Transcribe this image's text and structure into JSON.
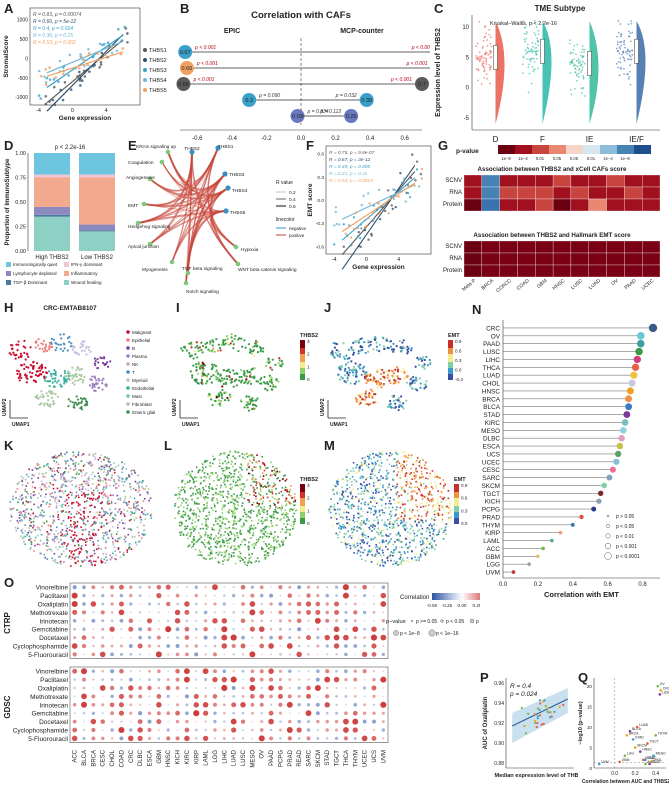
{
  "colors": {
    "thbs1": "#5a5a5a",
    "thbs2": "#2f4f6f",
    "thbs3": "#3aa0c9",
    "thbs4": "#6fb7d6",
    "thbs5": "#f0a060",
    "red": "#b30015",
    "blue": "#2c5c96"
  },
  "A": {
    "label": "A",
    "xlabel": "Gene expression",
    "ylabel": "StromalScore",
    "stats": [
      "R = 0.83, p = 0.00074",
      "R = 0.66, p = 5e-12",
      "R = 0.4, p = 0.024",
      "R = 0.36, p = 0.15",
      "R = 0.53, p = 0.002"
    ],
    "legend": [
      "THBS1",
      "THBS2",
      "THBS3",
      "THBS4",
      "THBS5"
    ],
    "xticks": [
      "-4",
      "0",
      "4"
    ],
    "yticks": [
      "1000",
      "500",
      "0",
      "-500",
      "-1000"
    ],
    "chart_data": {
      "type": "scatter",
      "title": "",
      "xlabel": "Gene expression",
      "ylabel": "StromalScore",
      "xlim": [
        -5,
        8
      ],
      "ylim": [
        -1200,
        1300
      ],
      "series": [
        {
          "name": "THBS1",
          "slope": 180,
          "intercept": -600
        },
        {
          "name": "THBS2",
          "slope": 220,
          "intercept": -700
        },
        {
          "name": "THBS3",
          "slope": 150,
          "intercept": -300
        },
        {
          "name": "THBS4",
          "slope": 90,
          "intercept": -100
        },
        {
          "name": "THBS5",
          "slope": 70,
          "intercept": -250
        }
      ]
    }
  },
  "B": {
    "label": "B",
    "title": "Correlation with CAFs",
    "left_title": "EPIC",
    "right_title": "MCP-counter",
    "xticks_left": [
      "-0.6",
      "-0.4",
      "-0.2",
      "0.0"
    ],
    "xticks_right": [
      "0.2",
      "0.4",
      "0.6"
    ],
    "chart_data": {
      "type": "dot",
      "xlim": [
        -0.7,
        0.7
      ],
      "epic": [
        {
          "gene": "THBS1",
          "value": -0.67,
          "p": "p < 0.001",
          "label": "0.67"
        },
        {
          "gene": "THBS2",
          "value": -0.66,
          "p": "p < 0.001",
          "label": "0.66"
        },
        {
          "gene": "THBS3",
          "value": -0.68,
          "p": "p < 0.001",
          "label": "0.68"
        },
        {
          "gene": "THBS4",
          "value": -0.3,
          "p": "p = 0.090",
          "label": "0.3"
        },
        {
          "gene": "THBS5",
          "value": -0.02,
          "p": "p = 0.834",
          "label": "0.02"
        }
      ],
      "mcp": [
        {
          "gene": "THBS1",
          "value": 0.82,
          "p": "p < 0.001",
          "label": "0.82"
        },
        {
          "gene": "THBS2",
          "value": 0.79,
          "p": "p < 0.001",
          "label": "0.79"
        },
        {
          "gene": "THBS3",
          "value": 0.7,
          "p": "p < 0.001",
          "label": "0.7"
        },
        {
          "gene": "THBS4",
          "value": 0.38,
          "p": "p = 0.032",
          "label": "0.38"
        },
        {
          "gene": "THBS5",
          "value": 0.29,
          "p": "p = 0.112",
          "label": "0.29"
        }
      ]
    }
  },
  "C": {
    "label": "C",
    "title": "TME Subtype",
    "stat": "Kruskal–Wallis, p < 2.2e-16",
    "ylabel": "Expression level of THBS2",
    "yticks": [
      "10",
      "5",
      "0",
      "-5"
    ],
    "chart_data": {
      "type": "violin",
      "categories": [
        "D",
        "F",
        "IE",
        "IE/F"
      ],
      "colors": [
        "#e8594a",
        "#27b8a8",
        "#33b89a",
        "#3a6aa8"
      ],
      "medians": [
        5,
        6,
        4,
        6
      ]
    }
  },
  "D": {
    "label": "D",
    "stat": "p < 2.2e-16",
    "ylabel": "Proportion of ImmunoSubtype",
    "yticks": [
      "1.00",
      "0.75",
      "0.50",
      "0.25",
      "0.00"
    ],
    "legend": [
      "Immunologically quiet",
      "IFN-γ dominant",
      "Lymphocyte depleted",
      "Inflammatory",
      "TGF-β Dominant",
      "Wound healing"
    ],
    "chart_data": {
      "type": "stacked_bar",
      "categories": [
        "High THBS2",
        "Low THBS2"
      ],
      "series": [
        {
          "name": "Wound healing",
          "color": "#8fd0c4",
          "values": [
            0.35,
            0.2
          ]
        },
        {
          "name": "TGF-β Dominant",
          "color": "#4a7aa0",
          "values": [
            0.02,
            0.01
          ]
        },
        {
          "name": "Lymphocyte depleted",
          "color": "#8c88c0",
          "values": [
            0.08,
            0.06
          ]
        },
        {
          "name": "Inflammatory",
          "color": "#f3a98e",
          "values": [
            0.3,
            0.48
          ]
        },
        {
          "name": "IFN-γ dominant",
          "color": "#f0c8d4",
          "values": [
            0.03,
            0.03
          ]
        },
        {
          "name": "Immunologically quiet",
          "color": "#6ec5e0",
          "values": [
            0.22,
            0.22
          ]
        }
      ]
    }
  },
  "E": {
    "label": "E",
    "nodes": [
      "THBS1",
      "THBS2",
      "THBS3",
      "THBS4",
      "THBS5",
      "KRAS signaling up",
      "Coagulation",
      "Angiogenesis",
      "EMT",
      "Hedgehog signaling",
      "Apical junction",
      "Myogenesis",
      "TGF beta signaling",
      "Notch signaling",
      "WNT beta catenin signaling",
      "Hypoxia"
    ],
    "legend_title": "R value",
    "legend_r": [
      "0.2",
      "0.4",
      "0.6"
    ],
    "legend_line_title": "linecolor",
    "legend_lines": [
      "negative",
      "positive"
    ]
  },
  "F": {
    "label": "F",
    "xlabel": "Gene expression",
    "ylabel": "EMT score",
    "stats": [
      "R = 0.75, p = 9.8e-07",
      "R = 0.67, p = 3e-12",
      "R = 0.49, p = 0.005",
      "R = 0.21, p = 0.41",
      "R = 0.53, p = 0.0014"
    ],
    "xticks": [
      "-4",
      "0",
      "4"
    ],
    "yticks": [
      "0.6",
      "0.3",
      "0.0",
      "-0.3",
      "-0.6"
    ]
  },
  "G": {
    "label": "G",
    "pvalue_title": "p-value",
    "pvalue_ticks": [
      "1e−8",
      "1e−4",
      "0.01",
      "0.05",
      "0.05",
      "0.01",
      "1e−4",
      "1e−8"
    ],
    "title1": "Association between THBS2 and xCell CAFs score",
    "title2": "Association between THBS2 and Hallmark EMT score",
    "rows1": [
      "SCNV",
      "RNA",
      "Protein"
    ],
    "rows2": [
      "SCNV",
      "RNA",
      "Protein"
    ],
    "cols": [
      "Meta P",
      "BRCA",
      "CCRCC",
      "COAD",
      "GBM",
      "HNSC",
      "LUSC",
      "LUAD",
      "OV",
      "PAAD",
      "UCEC"
    ]
  },
  "H": {
    "label": "H",
    "title": "CRC-EMTAB8107",
    "xlabel": "UMAP1",
    "ylabel": "UMAP2",
    "legend": [
      "Malignant",
      "Epithelial",
      "B",
      "Plasma",
      "NK",
      "T",
      "Myeloid",
      "Endothelial",
      "Mast",
      "Fibroblast",
      "Enteric glial"
    ],
    "legend_colors": [
      "#c8102e",
      "#f08080",
      "#7b3fa0",
      "#9b7fc0",
      "#d0a0d0",
      "#4e8fc0",
      "#c0c0e0",
      "#3ab0a0",
      "#7ac0b0",
      "#a8c8a0",
      "#3f8f4f"
    ]
  },
  "I": {
    "label": "I",
    "colorbar_title": "THBS2",
    "colorbar_ticks": [
      "3",
      "2",
      "1",
      "0"
    ]
  },
  "J": {
    "label": "J",
    "colorbar_title": "EMT",
    "colorbar_ticks": [
      "0.9",
      "0.6",
      "0.3",
      "0.0",
      "-0.3"
    ]
  },
  "K": {
    "label": "K"
  },
  "L": {
    "label": "L",
    "colorbar_title": "THBS2",
    "colorbar_ticks": [
      "3",
      "2",
      "1",
      "0"
    ]
  },
  "M": {
    "label": "M",
    "colorbar_title": "EMT",
    "colorbar_ticks": [
      "0.9",
      "0.6",
      "0.3",
      "0.0"
    ]
  },
  "N": {
    "label": "N",
    "xlabel": "Correlation with EMT",
    "xticks": [
      "0.0",
      "0.2",
      "0.4",
      "0.6",
      "0.8"
    ],
    "legend": [
      "p > 0.05",
      "p < 0.05",
      "p < 0.01",
      "p < 0.001",
      "p < 0.0001"
    ],
    "chart_data": {
      "type": "lollipop",
      "xlim": [
        0,
        0.9
      ],
      "categories": [
        "CRC",
        "OV",
        "PAAD",
        "LUSC",
        "LIHC",
        "THCA",
        "LUAD",
        "CHOL",
        "HNSC",
        "BRCA",
        "BLCA",
        "STAD",
        "KIRC",
        "MESO",
        "DLBC",
        "ESCA",
        "UCS",
        "UCEC",
        "CESC",
        "SARC",
        "SKCM",
        "TGCT",
        "KICH",
        "PCPG",
        "PRAD",
        "THYM",
        "KIRP",
        "LAML",
        "ACC",
        "GBM",
        "LGG",
        "UVM"
      ],
      "values": [
        0.86,
        0.79,
        0.79,
        0.78,
        0.77,
        0.76,
        0.75,
        0.74,
        0.73,
        0.72,
        0.72,
        0.71,
        0.7,
        0.69,
        0.68,
        0.67,
        0.66,
        0.65,
        0.63,
        0.61,
        0.58,
        0.56,
        0.55,
        0.52,
        0.45,
        0.4,
        0.33,
        0.28,
        0.23,
        0.2,
        0.15,
        0.06
      ]
    }
  },
  "O": {
    "label": "O",
    "ylabel_top": "CTRP",
    "ylabel_bottom": "GDSC",
    "drugs": [
      "Vinorelbine",
      "Paclitaxel",
      "Oxaliplatin",
      "Methotrexate",
      "Irinotecan",
      "Gemcitabine",
      "Docetaxel",
      "Cyclophosphamide",
      "5-Fluorouracil"
    ],
    "cancers": [
      "ACC",
      "BLCA",
      "BRCA",
      "CESC",
      "CHOL",
      "COAD",
      "CRC",
      "DLBC",
      "ESCA",
      "GBM",
      "HNSC",
      "KICH",
      "KIRC",
      "KIRP",
      "LAML",
      "LGG",
      "LIHC",
      "LUAD",
      "LUSC",
      "MESO",
      "OV",
      "PAAD",
      "PCPG",
      "PRAD",
      "READ",
      "SARC",
      "SKCM",
      "STAD",
      "TGCT",
      "THCA",
      "THYM",
      "UCEC",
      "UCS",
      "UVM"
    ],
    "legend_title": "Correlation",
    "legend_ticks": [
      "-0.50",
      "-0.25",
      "0.00",
      "0.25",
      "0.50"
    ],
    "pvalue_label": "p−value",
    "pvalue_items": [
      "p >= 0.05",
      "p < 0.05",
      "p < 1e−4",
      "p < 1e−8",
      "p < 1e−16"
    ]
  },
  "P": {
    "label": "P",
    "stats": [
      "R = 0.4",
      "p = 0.024"
    ],
    "xlabel": "Median expression level of THBS2",
    "ylabel": "AUC of Oxaliplatin",
    "yticks": [
      "0.96",
      "0.94",
      "0.92",
      "0.90",
      "0.88"
    ],
    "xticks": [
      "2",
      "3",
      "4",
      "5",
      "6"
    ],
    "chart_data": {
      "type": "scatter",
      "xlim": [
        1.5,
        7
      ],
      "ylim": [
        0.875,
        0.965
      ],
      "slope": 0.006,
      "intercept": 0.905
    }
  },
  "Q": {
    "label": "Q",
    "xlabel": "Correlation between AUC and THBS2",
    "ylabel": "−log10 (p−value)",
    "xticks": [
      "0.0",
      "0.2",
      "0.4"
    ],
    "yticks": [
      "20",
      "15",
      "10",
      "5",
      "0"
    ],
    "points": [
      "UVM",
      "GBM",
      "LGG",
      "SKCM",
      "HNSC",
      "DLBC",
      "TGCT",
      "THYM",
      "BRCA",
      "BLCA",
      "STAD",
      "LUAD",
      "OV",
      "CRC",
      "LUSC",
      "MESO",
      "KIRC",
      "ACC",
      "CHOL",
      "PAAD"
    ]
  }
}
